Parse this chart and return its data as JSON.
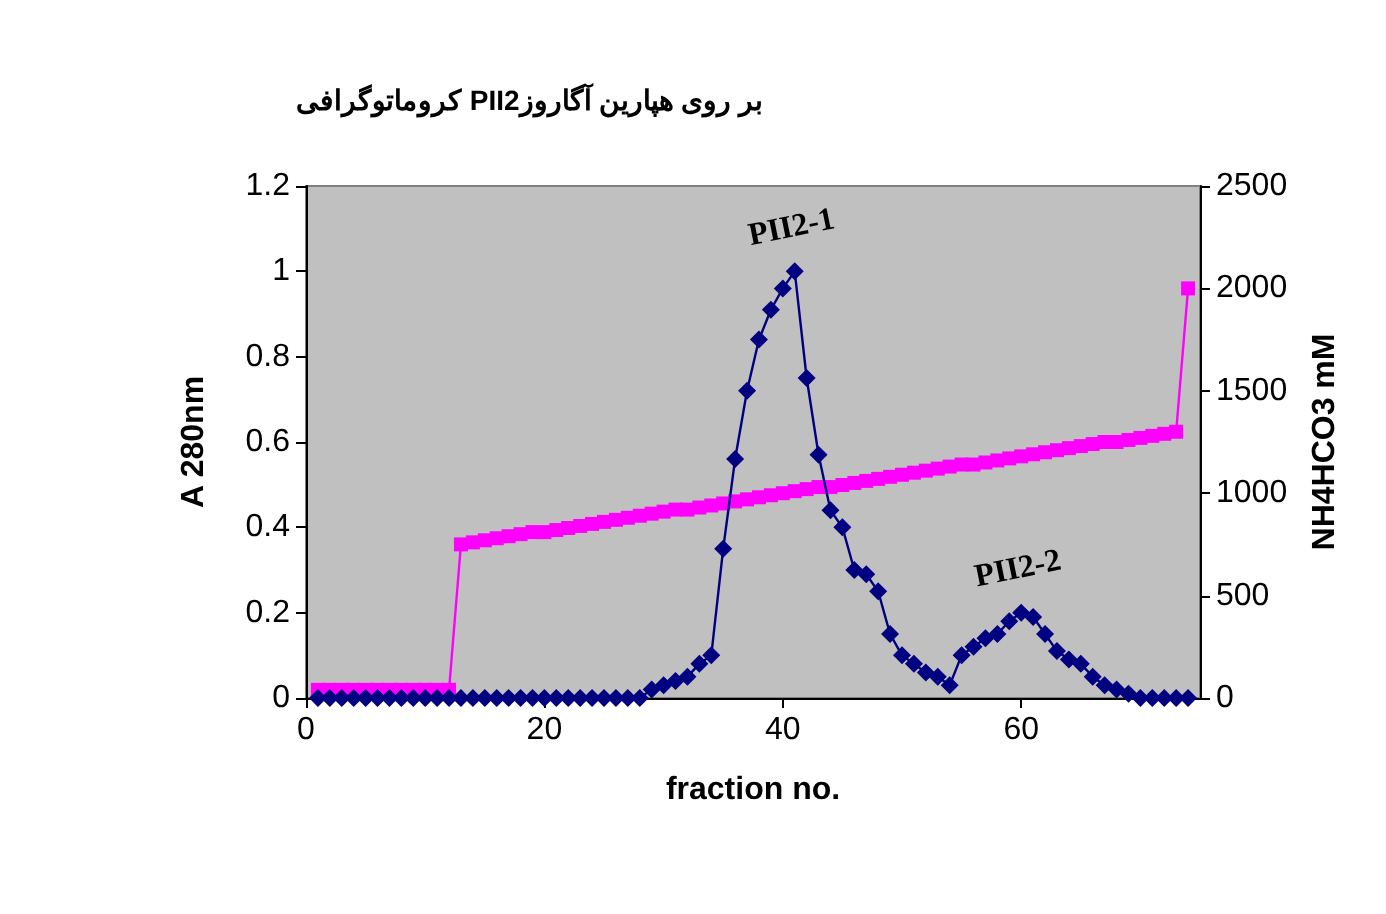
{
  "chart_data": {
    "type": "line",
    "title": "کروماتوگرافی PII2بر روی هپارین آگاروز",
    "xlabel": "fraction no.",
    "ylabel": "A 280nm",
    "y2label": "NH4HCO3 mM",
    "x": [
      1,
      2,
      3,
      4,
      5,
      6,
      7,
      8,
      9,
      10,
      11,
      12,
      13,
      14,
      15,
      16,
      17,
      18,
      19,
      20,
      21,
      22,
      23,
      24,
      25,
      26,
      27,
      28,
      29,
      30,
      31,
      32,
      33,
      34,
      35,
      36,
      37,
      38,
      39,
      40,
      41,
      42,
      43,
      44,
      45,
      46,
      47,
      48,
      49,
      50,
      51,
      52,
      53,
      54,
      55,
      56,
      57,
      58,
      59,
      60,
      61,
      62,
      63,
      64,
      65,
      66,
      67,
      68,
      69,
      70,
      71,
      72,
      73,
      74
    ],
    "series": [
      {
        "color": "#000080",
        "marker": "diamond",
        "values": [
          0,
          0,
          0,
          0,
          0,
          0,
          0,
          0,
          0,
          0,
          0,
          0,
          0,
          0,
          0,
          0,
          0,
          0,
          0,
          0,
          0,
          0,
          0,
          0,
          0,
          0,
          0,
          0,
          0.02,
          0.03,
          0.04,
          0.05,
          0.08,
          0.1,
          0.35,
          0.56,
          0.72,
          0.84,
          0.91,
          0.96,
          1.0,
          0.75,
          0.57,
          0.44,
          0.4,
          0.3,
          0.29,
          0.25,
          0.15,
          0.1,
          0.08,
          0.06,
          0.05,
          0.03,
          0.1,
          0.12,
          0.14,
          0.15,
          0.18,
          0.2,
          0.19,
          0.15,
          0.11,
          0.09,
          0.08,
          0.05,
          0.03,
          0.02,
          0.01,
          0,
          0,
          0,
          0,
          0
        ]
      },
      {
        "color": "#ff00ff",
        "marker": "square",
        "axis": "y2",
        "values": [
          40,
          40,
          40,
          40,
          40,
          40,
          40,
          40,
          40,
          40,
          40,
          40,
          750,
          760,
          770,
          780,
          790,
          800,
          810,
          810,
          820,
          830,
          840,
          850,
          860,
          870,
          880,
          890,
          900,
          910,
          920,
          920,
          930,
          940,
          950,
          960,
          970,
          980,
          990,
          1000,
          1010,
          1020,
          1030,
          1030,
          1040,
          1050,
          1060,
          1070,
          1080,
          1090,
          1100,
          1110,
          1120,
          1130,
          1140,
          1140,
          1150,
          1160,
          1170,
          1180,
          1190,
          1200,
          1210,
          1220,
          1230,
          1240,
          1250,
          1250,
          1260,
          1270,
          1280,
          1290,
          1300,
          2000
        ]
      }
    ],
    "xlim": [
      0,
      75
    ],
    "xticks": [
      0,
      20,
      40,
      60
    ],
    "ylim": [
      0,
      1.2
    ],
    "yticks": [
      0,
      0.2,
      0.4,
      0.6,
      0.8,
      1,
      1.2
    ],
    "y2lim": [
      0,
      2500
    ],
    "y2ticks": [
      0,
      500,
      1000,
      1500,
      2000,
      2500
    ],
    "annotations": [
      {
        "text": "PII2-1",
        "x": 41,
        "y": 1.0
      },
      {
        "text": "PII2-2",
        "x": 60,
        "y": 0.2
      }
    ],
    "grid": false
  }
}
